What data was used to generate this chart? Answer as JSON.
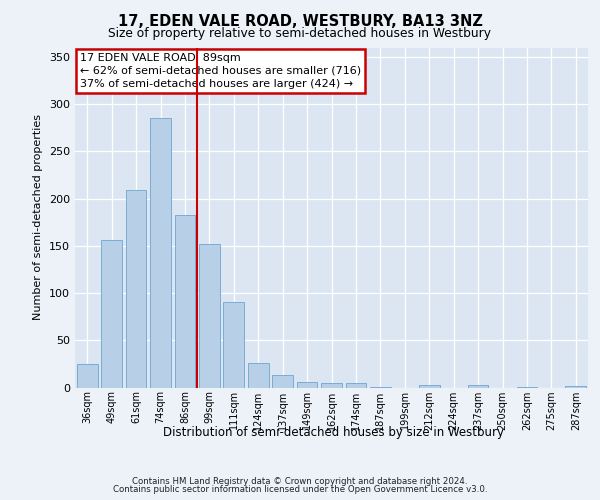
{
  "title1": "17, EDEN VALE ROAD, WESTBURY, BA13 3NZ",
  "title2": "Size of property relative to semi-detached houses in Westbury",
  "xlabel": "Distribution of semi-detached houses by size in Westbury",
  "ylabel": "Number of semi-detached properties",
  "categories": [
    "36sqm",
    "49sqm",
    "61sqm",
    "74sqm",
    "86sqm",
    "99sqm",
    "111sqm",
    "124sqm",
    "137sqm",
    "149sqm",
    "162sqm",
    "174sqm",
    "187sqm",
    "199sqm",
    "212sqm",
    "224sqm",
    "237sqm",
    "250sqm",
    "262sqm",
    "275sqm",
    "287sqm"
  ],
  "values": [
    25,
    156,
    209,
    285,
    183,
    152,
    91,
    26,
    13,
    6,
    5,
    5,
    1,
    0,
    3,
    0,
    3,
    0,
    1,
    0,
    2
  ],
  "bar_color": "#b8cfe8",
  "bar_edge_color": "#7aadd4",
  "vline_color": "#cc0000",
  "annotation_text": "17 EDEN VALE ROAD: 89sqm\n← 62% of semi-detached houses are smaller (716)\n37% of semi-detached houses are larger (424) →",
  "annotation_box_color": "white",
  "annotation_box_edge": "#cc0000",
  "ylim": [
    0,
    360
  ],
  "yticks": [
    0,
    50,
    100,
    150,
    200,
    250,
    300,
    350
  ],
  "footer1": "Contains HM Land Registry data © Crown copyright and database right 2024.",
  "footer2": "Contains public sector information licensed under the Open Government Licence v3.0.",
  "bg_color": "#edf1f8",
  "plot_bg_color": "#dce6f2"
}
